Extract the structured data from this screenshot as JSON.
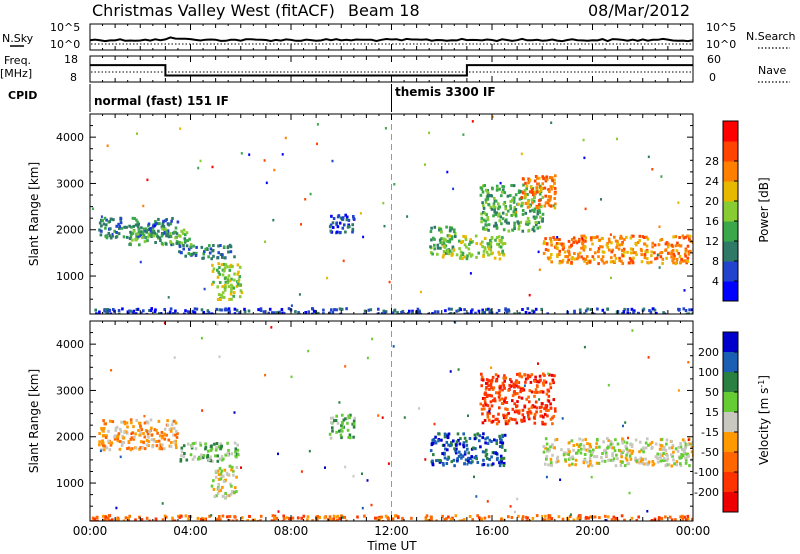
{
  "header": {
    "title": "Christmas Valley West (fitACF)",
    "beam": "Beam 18",
    "date": "08/Mar/2012"
  },
  "noise_panel": {
    "left_label": "N.Sky",
    "left_ticks": [
      "10^5",
      "10^0"
    ],
    "right_label": "N.Search",
    "right_ticks": [
      "10^5",
      "10^0"
    ]
  },
  "freq_panel": {
    "left_label_1": "Freq.",
    "left_label_2": "[MHz]",
    "left_ticks": [
      "18",
      "8"
    ],
    "right_label": "Nave",
    "right_ticks": [
      "60",
      "0"
    ],
    "freq_series": {
      "x_hours": [
        0,
        3,
        3,
        15,
        15,
        24
      ],
      "y_mhz": [
        14.5,
        14.5,
        10.5,
        10.5,
        14.5,
        14.5
      ]
    }
  },
  "cpid": {
    "label": "CPID",
    "mode_1": "normal (fast) 151 IF",
    "mode_2": "themis 3300 IF",
    "switch_hour": 12
  },
  "x_axis": {
    "label": "Time UT",
    "ticks": [
      "00:00",
      "04:00",
      "08:00",
      "12:00",
      "16:00",
      "20:00",
      "00:00"
    ],
    "range_hours": [
      0,
      24
    ]
  },
  "y_axis": {
    "label": "Slant Range [km]",
    "ticks": [
      "1000",
      "2000",
      "3000",
      "4000"
    ],
    "range_km": [
      180,
      4500
    ]
  },
  "power_colorbar": {
    "label": "Power [dB]",
    "ticks": [
      "4",
      "8",
      "12",
      "16",
      "20",
      "24",
      "28"
    ],
    "colors": [
      "#0000ff",
      "#2244cc",
      "#2e7a66",
      "#3aa84a",
      "#88cc33",
      "#e6b800",
      "#ff8000",
      "#ff4400",
      "#ff0000"
    ]
  },
  "velocity_colorbar": {
    "label": "Velocity [m s",
    "label_sup": "-1",
    "label_end": "]",
    "ticks": [
      "200",
      "100",
      "50",
      "15",
      "-15",
      "-50",
      "-100",
      "-200"
    ],
    "colors": [
      "#0000cc",
      "#1a5fb4",
      "#2a8040",
      "#66cc33",
      "#c8c8c0",
      "#ff9900",
      "#ff6600",
      "#ff3300",
      "#ee0000"
    ]
  },
  "chart_data": {
    "type": "heatmap",
    "x_unit": "hours UT",
    "y_unit": "km",
    "power_regions": [
      {
        "t": [
          0.3,
          3.5
        ],
        "r": [
          1850,
          2300
        ],
        "level": 2
      },
      {
        "t": [
          1.5,
          4.0
        ],
        "r": [
          1700,
          2050
        ],
        "level": 3
      },
      {
        "t": [
          3.5,
          5.8
        ],
        "r": [
          1400,
          1700
        ],
        "level": 2
      },
      {
        "t": [
          4.8,
          6.0
        ],
        "r": [
          500,
          1300
        ],
        "level": 4
      },
      {
        "t": [
          9.5,
          10.5
        ],
        "r": [
          1950,
          2350
        ],
        "level": 1
      },
      {
        "t": [
          13.5,
          14.5
        ],
        "r": [
          1500,
          2100
        ],
        "level": 3
      },
      {
        "t": [
          14.0,
          16.5
        ],
        "r": [
          1400,
          1900
        ],
        "level": 4
      },
      {
        "t": [
          15.5,
          18.0
        ],
        "r": [
          2000,
          3000
        ],
        "level": 3
      },
      {
        "t": [
          17.0,
          18.5
        ],
        "r": [
          2500,
          3200
        ],
        "level": 6
      },
      {
        "t": [
          18.0,
          24.0
        ],
        "r": [
          1300,
          1900
        ],
        "level": 6
      },
      {
        "t": [
          0.0,
          24.0
        ],
        "r": [
          200,
          330
        ],
        "level": 1
      }
    ],
    "velocity_regions": [
      {
        "t": [
          0.3,
          3.5
        ],
        "r": [
          1750,
          2400
        ],
        "level": 5
      },
      {
        "t": [
          3.5,
          6.0
        ],
        "r": [
          1500,
          1900
        ],
        "level": 3
      },
      {
        "t": [
          4.8,
          5.8
        ],
        "r": [
          700,
          1400
        ],
        "level": 4
      },
      {
        "t": [
          9.5,
          10.5
        ],
        "r": [
          2000,
          2500
        ],
        "level": 3
      },
      {
        "t": [
          13.5,
          16.5
        ],
        "r": [
          1400,
          2100
        ],
        "level": 1
      },
      {
        "t": [
          15.5,
          18.5
        ],
        "r": [
          2300,
          3400
        ],
        "level": 7
      },
      {
        "t": [
          18.0,
          24.0
        ],
        "r": [
          1400,
          2000
        ],
        "level": 4
      },
      {
        "t": [
          0.0,
          24.0
        ],
        "r": [
          200,
          330
        ],
        "level": 6
      }
    ]
  }
}
